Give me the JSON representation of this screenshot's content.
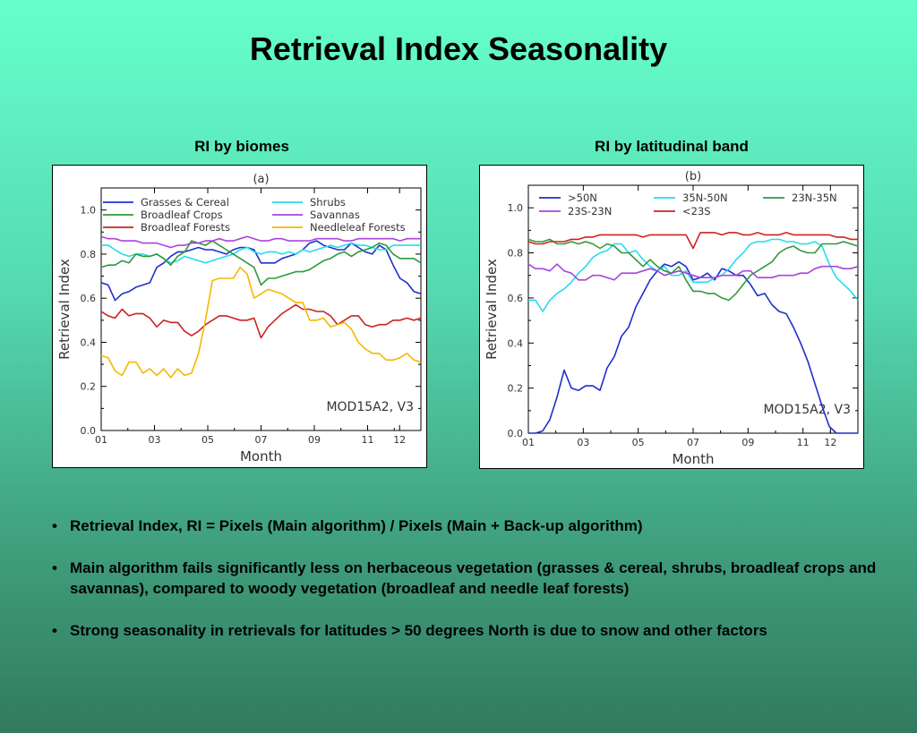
{
  "title": "Retrieval Index Seasonality",
  "panels": {
    "left_heading": "RI by biomes",
    "right_heading": "RI by latitudinal band"
  },
  "bullets": [
    "Retrieval Index, RI = Pixels (Main algorithm) / Pixels (Main + Back-up algorithm)",
    "Main algorithm fails significantly less on herbaceous vegetation (grasses & cereal, shrubs, broadleaf crops and savannas), compared to woody vegetation (broadleaf and needle leaf forests)",
    "Strong seasonality in retrievals for latitudes > 50 degrees North is due to snow and other factors"
  ],
  "chart_data": [
    {
      "type": "line",
      "panel_label": "(a)",
      "annotation": "MOD15A2, V3",
      "xlabel": "Month",
      "ylabel": "Retrieval Index",
      "xlim": [
        1,
        13
      ],
      "ylim": [
        0,
        1.1
      ],
      "x_ticks": [
        "01",
        "03",
        "05",
        "07",
        "09",
        "11",
        "12"
      ],
      "x_tick_values": [
        1,
        3,
        5,
        7,
        9,
        11,
        12.2
      ],
      "y_ticks": [
        "0.0",
        "0.2",
        "0.4",
        "0.6",
        "0.8",
        "1.0"
      ],
      "grid": false,
      "legend_position": "top",
      "series": [
        {
          "name": "Grasses & Cereal",
          "color": "#1f2fcc",
          "values": [
            0.67,
            0.66,
            0.59,
            0.62,
            0.63,
            0.65,
            0.66,
            0.67,
            0.74,
            0.76,
            0.79,
            0.81,
            0.81,
            0.82,
            0.83,
            0.82,
            0.82,
            0.81,
            0.8,
            0.82,
            0.83,
            0.83,
            0.82,
            0.76,
            0.76,
            0.76,
            0.78,
            0.79,
            0.8,
            0.82,
            0.85,
            0.86,
            0.84,
            0.83,
            0.82,
            0.82,
            0.85,
            0.83,
            0.81,
            0.8,
            0.84,
            0.82,
            0.75,
            0.69,
            0.67,
            0.63,
            0.62
          ]
        },
        {
          "name": "Shrubs",
          "color": "#22ddee",
          "values": [
            0.84,
            0.84,
            0.82,
            0.8,
            0.79,
            0.8,
            0.8,
            0.79,
            0.8,
            0.78,
            0.76,
            0.77,
            0.79,
            0.78,
            0.77,
            0.76,
            0.77,
            0.78,
            0.79,
            0.8,
            0.82,
            0.83,
            0.81,
            0.8,
            0.81,
            0.81,
            0.8,
            0.81,
            0.8,
            0.82,
            0.81,
            0.82,
            0.83,
            0.84,
            0.83,
            0.84,
            0.85,
            0.84,
            0.84,
            0.83,
            0.82,
            0.82,
            0.84,
            0.84,
            0.84,
            0.84,
            0.84
          ]
        },
        {
          "name": "Broadleaf Crops",
          "color": "#2e9a3c",
          "values": [
            0.74,
            0.75,
            0.75,
            0.77,
            0.76,
            0.8,
            0.79,
            0.79,
            0.8,
            0.78,
            0.75,
            0.79,
            0.81,
            0.86,
            0.85,
            0.84,
            0.86,
            0.84,
            0.82,
            0.8,
            0.78,
            0.76,
            0.74,
            0.66,
            0.69,
            0.69,
            0.7,
            0.71,
            0.72,
            0.72,
            0.73,
            0.75,
            0.77,
            0.78,
            0.8,
            0.81,
            0.79,
            0.81,
            0.82,
            0.83,
            0.85,
            0.84,
            0.8,
            0.78,
            0.78,
            0.78,
            0.76
          ]
        },
        {
          "name": "Savannas",
          "color": "#aa44dd",
          "values": [
            0.88,
            0.87,
            0.87,
            0.86,
            0.86,
            0.86,
            0.85,
            0.85,
            0.85,
            0.84,
            0.83,
            0.84,
            0.84,
            0.85,
            0.85,
            0.86,
            0.86,
            0.87,
            0.86,
            0.86,
            0.87,
            0.88,
            0.87,
            0.86,
            0.86,
            0.87,
            0.87,
            0.86,
            0.86,
            0.86,
            0.86,
            0.87,
            0.87,
            0.87,
            0.87,
            0.86,
            0.86,
            0.87,
            0.87,
            0.87,
            0.87,
            0.87,
            0.87,
            0.86,
            0.87,
            0.87,
            0.87
          ]
        },
        {
          "name": "Broadleaf Forests",
          "color": "#cc2222",
          "values": [
            0.54,
            0.52,
            0.51,
            0.55,
            0.52,
            0.53,
            0.53,
            0.51,
            0.47,
            0.5,
            0.49,
            0.49,
            0.45,
            0.43,
            0.45,
            0.48,
            0.5,
            0.52,
            0.52,
            0.51,
            0.5,
            0.5,
            0.51,
            0.42,
            0.47,
            0.5,
            0.53,
            0.55,
            0.57,
            0.55,
            0.55,
            0.54,
            0.54,
            0.52,
            0.48,
            0.5,
            0.52,
            0.52,
            0.48,
            0.47,
            0.48,
            0.48,
            0.5,
            0.5,
            0.51,
            0.5,
            0.51
          ]
        },
        {
          "name": "Needleleaf Forests",
          "color": "#f5b800",
          "values": [
            0.34,
            0.33,
            0.27,
            0.25,
            0.31,
            0.31,
            0.26,
            0.28,
            0.25,
            0.28,
            0.24,
            0.28,
            0.25,
            0.26,
            0.35,
            0.5,
            0.68,
            0.69,
            0.69,
            0.69,
            0.74,
            0.71,
            0.6,
            0.62,
            0.64,
            0.63,
            0.62,
            0.6,
            0.58,
            0.58,
            0.5,
            0.5,
            0.51,
            0.47,
            0.48,
            0.49,
            0.46,
            0.4,
            0.37,
            0.35,
            0.35,
            0.32,
            0.32,
            0.33,
            0.35,
            0.32,
            0.31
          ]
        }
      ]
    },
    {
      "type": "line",
      "panel_label": "(b)",
      "annotation": "MOD15A2, V3",
      "xlabel": "Month",
      "ylabel": "Retrieval Index",
      "xlim": [
        1,
        13
      ],
      "ylim": [
        0,
        1.1
      ],
      "x_ticks": [
        "01",
        "03",
        "05",
        "07",
        "09",
        "11",
        "12"
      ],
      "x_tick_values": [
        1,
        3,
        5,
        7,
        9,
        11,
        12
      ],
      "y_ticks": [
        "0.0",
        "0.2",
        "0.4",
        "0.6",
        "0.8",
        "1.0"
      ],
      "grid": false,
      "legend_position": "top",
      "series": [
        {
          "name": ">50N",
          "color": "#1f2fcc",
          "values": [
            0.0,
            0.0,
            0.01,
            0.06,
            0.16,
            0.28,
            0.2,
            0.19,
            0.21,
            0.21,
            0.19,
            0.29,
            0.34,
            0.43,
            0.47,
            0.56,
            0.62,
            0.68,
            0.72,
            0.75,
            0.74,
            0.76,
            0.74,
            0.68,
            0.69,
            0.71,
            0.68,
            0.73,
            0.72,
            0.7,
            0.7,
            0.66,
            0.61,
            0.62,
            0.57,
            0.54,
            0.53,
            0.47,
            0.4,
            0.32,
            0.22,
            0.12,
            0.03,
            0.0,
            0.0,
            0.0,
            0.0
          ]
        },
        {
          "name": "35N-50N",
          "color": "#22ddee",
          "values": [
            0.59,
            0.59,
            0.54,
            0.59,
            0.62,
            0.64,
            0.67,
            0.71,
            0.74,
            0.78,
            0.8,
            0.81,
            0.84,
            0.84,
            0.8,
            0.81,
            0.77,
            0.74,
            0.72,
            0.74,
            0.7,
            0.7,
            0.72,
            0.67,
            0.67,
            0.67,
            0.69,
            0.7,
            0.73,
            0.77,
            0.8,
            0.84,
            0.85,
            0.85,
            0.86,
            0.86,
            0.85,
            0.85,
            0.84,
            0.84,
            0.85,
            0.83,
            0.75,
            0.69,
            0.66,
            0.63,
            0.59
          ]
        },
        {
          "name": "23N-35N",
          "color": "#2e9a3c",
          "values": [
            0.86,
            0.85,
            0.85,
            0.86,
            0.84,
            0.84,
            0.85,
            0.84,
            0.85,
            0.84,
            0.82,
            0.84,
            0.83,
            0.8,
            0.8,
            0.77,
            0.74,
            0.77,
            0.74,
            0.72,
            0.71,
            0.74,
            0.68,
            0.63,
            0.63,
            0.62,
            0.62,
            0.6,
            0.59,
            0.62,
            0.66,
            0.7,
            0.72,
            0.74,
            0.76,
            0.8,
            0.82,
            0.83,
            0.81,
            0.8,
            0.8,
            0.84,
            0.84,
            0.84,
            0.85,
            0.84,
            0.83
          ]
        },
        {
          "name": "23S-23N",
          "color": "#aa44dd",
          "values": [
            0.75,
            0.73,
            0.73,
            0.72,
            0.75,
            0.72,
            0.71,
            0.68,
            0.68,
            0.7,
            0.7,
            0.69,
            0.68,
            0.71,
            0.71,
            0.71,
            0.72,
            0.73,
            0.72,
            0.7,
            0.71,
            0.72,
            0.71,
            0.7,
            0.69,
            0.69,
            0.69,
            0.7,
            0.7,
            0.7,
            0.72,
            0.72,
            0.69,
            0.69,
            0.69,
            0.7,
            0.7,
            0.7,
            0.71,
            0.71,
            0.73,
            0.74,
            0.74,
            0.74,
            0.73,
            0.73,
            0.74
          ]
        },
        {
          "name": "<23S",
          "color": "#cc2222",
          "values": [
            0.85,
            0.84,
            0.84,
            0.85,
            0.85,
            0.85,
            0.86,
            0.86,
            0.87,
            0.87,
            0.88,
            0.88,
            0.88,
            0.88,
            0.88,
            0.88,
            0.87,
            0.88,
            0.88,
            0.88,
            0.88,
            0.88,
            0.88,
            0.82,
            0.89,
            0.89,
            0.89,
            0.88,
            0.89,
            0.89,
            0.88,
            0.88,
            0.89,
            0.88,
            0.88,
            0.88,
            0.89,
            0.88,
            0.88,
            0.88,
            0.88,
            0.88,
            0.88,
            0.87,
            0.87,
            0.86,
            0.86
          ]
        }
      ]
    }
  ]
}
